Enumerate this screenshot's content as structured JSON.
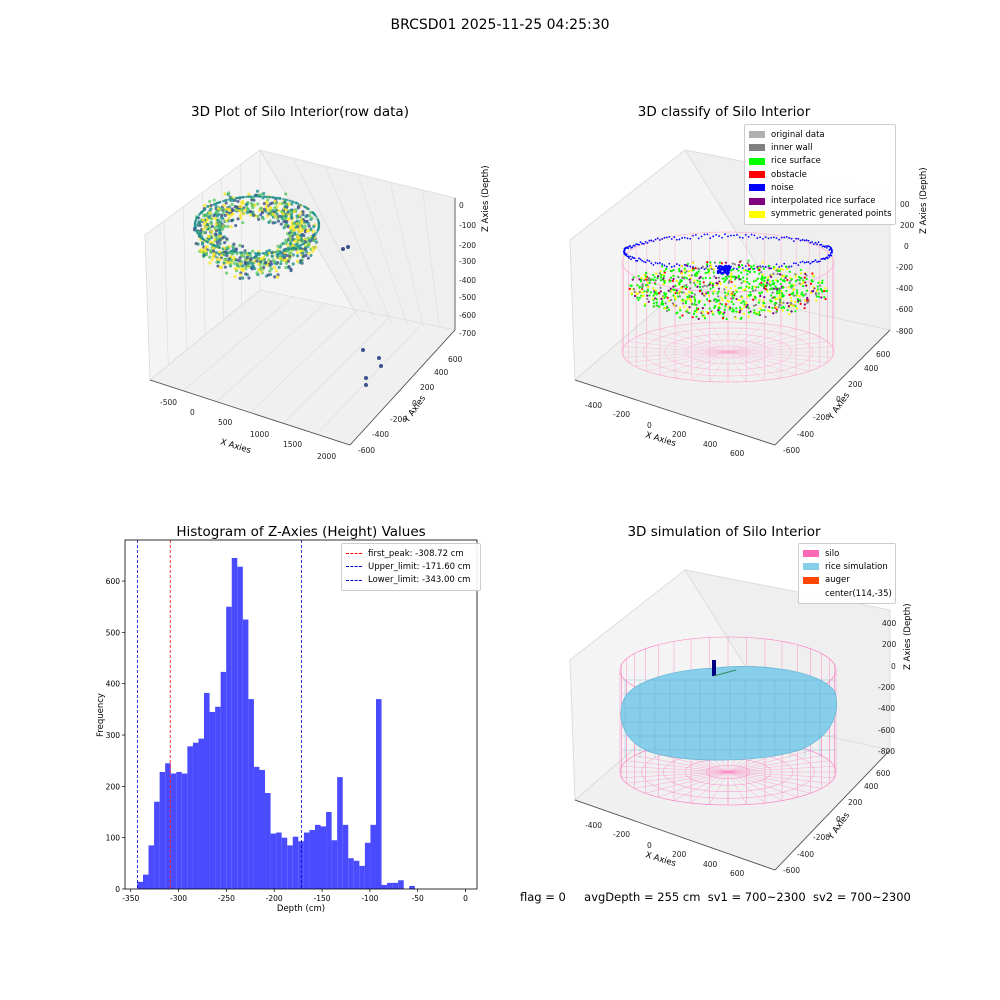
{
  "page_title": "BRCSD01 2025-11-25 04:25:30",
  "footer": {
    "flag": "flag = 0",
    "avg_depth": "avgDepth = 255 cm",
    "sv1": "sv1 = 700~2300",
    "sv2": "sv2 = 700~2300"
  },
  "chart_data": [
    {
      "type": "scatter",
      "title": "3D Plot of Silo Interior(row data)",
      "xlabel": "X Axies",
      "ylabel": "Y Axies",
      "zlabel": "Z Axies (Depth)",
      "x_ticks": [
        "-500",
        "0",
        "500",
        "1000",
        "1500",
        "2000"
      ],
      "y_ticks": [
        "-600",
        "-400",
        "-200",
        "0",
        "200",
        "400",
        "600"
      ],
      "z_ticks": [
        "0",
        "-100",
        "-200",
        "-300",
        "-400",
        "-500",
        "-600",
        "-700"
      ],
      "colormap": [
        "#440154",
        "#3b528b",
        "#21918c",
        "#5ec962",
        "#fde725"
      ]
    },
    {
      "type": "scatter",
      "title": "3D classify of Silo Interior",
      "xlabel": "X Axies",
      "ylabel": "Y Axies",
      "zlabel": "Z Axies (Depth)",
      "x_ticks": [
        "-400",
        "-200",
        "0",
        "200",
        "400",
        "600"
      ],
      "y_ticks": [
        "-600",
        "-400",
        "-200",
        "0",
        "200",
        "400",
        "600"
      ],
      "z_ticks": [
        "200",
        "0",
        "-200",
        "-400",
        "-600",
        "-800"
      ],
      "z_partial_tick": "00",
      "legend_position": "top-right",
      "legend": [
        {
          "label": "original data",
          "color": "#b0b0b0"
        },
        {
          "label": "inner wall",
          "color": "#808080"
        },
        {
          "label": "rice surface",
          "color": "#00ff00"
        },
        {
          "label": "obstacle",
          "color": "#ff0000"
        },
        {
          "label": "noise",
          "color": "#0000ff"
        },
        {
          "label": "interpolated rice surface",
          "color": "#800080"
        },
        {
          "label": "symmetric generated points",
          "color": "#ffff00"
        }
      ]
    },
    {
      "type": "bar",
      "title": "Histogram of Z-Axies (Height) Values",
      "xlabel": "Depth (cm)",
      "ylabel": "Frequency",
      "xlim": [
        -356,
        12
      ],
      "ylim": [
        0,
        680
      ],
      "x_ticks": [
        -350,
        -300,
        -250,
        -200,
        -150,
        -100,
        -50,
        0
      ],
      "y_ticks": [
        0,
        100,
        200,
        300,
        400,
        500,
        600
      ],
      "bar_color": "#4a4aff",
      "bin_width": 5.8,
      "bin_start": -343,
      "values": [
        14,
        28,
        85,
        170,
        228,
        245,
        225,
        228,
        225,
        278,
        285,
        293,
        382,
        345,
        355,
        423,
        550,
        645,
        628,
        525,
        370,
        238,
        232,
        187,
        108,
        110,
        100,
        85,
        102,
        93,
        110,
        115,
        125,
        122,
        150,
        95,
        218,
        125,
        60,
        55,
        45,
        90,
        125,
        370,
        8,
        12,
        12,
        17,
        0,
        6
      ],
      "vlines": [
        {
          "label": "first_peak: -308.72 cm",
          "value": -308.72,
          "color": "#ff0000"
        },
        {
          "label": "Upper_limit: -171.60 cm",
          "value": -171.6,
          "color": "#0000cc"
        },
        {
          "label": "Lower_limit: -343.00 cm",
          "value": -343.0,
          "color": "#0000cc"
        }
      ],
      "legend_position": "top-right"
    },
    {
      "type": "area",
      "title": "3D simulation of Silo Interior",
      "xlabel": "X Axies",
      "ylabel": "Y Axies",
      "zlabel": "Z Axies (Depth)",
      "x_ticks": [
        "-400",
        "-200",
        "0",
        "200",
        "400",
        "600"
      ],
      "y_ticks": [
        "-600",
        "-400",
        "-200",
        "0",
        "200",
        "400",
        "600"
      ],
      "z_ticks": [
        "400",
        "200",
        "0",
        "-200",
        "-400",
        "-600",
        "-800"
      ],
      "legend_position": "top-right",
      "legend": [
        {
          "label": "silo",
          "color": "#ff69b4"
        },
        {
          "label": "rice simulation",
          "color": "#87ceeb"
        },
        {
          "label": "auger",
          "color": "#ff4500"
        },
        {
          "label": "center(114,-35)",
          "color": ""
        }
      ]
    }
  ]
}
